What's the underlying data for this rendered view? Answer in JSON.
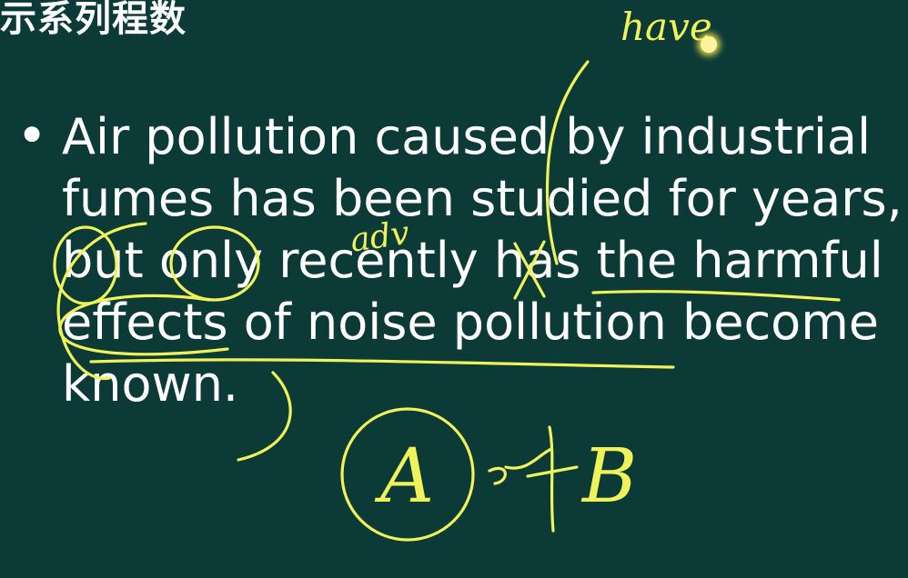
{
  "header": {
    "fragment": "示系列程数"
  },
  "bullet": {
    "symbol": "•",
    "lines": [
      "Air pollution caused by industrial",
      "fumes has been studied for years,",
      "but only recently has the harmful",
      "effects of noise pollution become",
      "known."
    ]
  },
  "annotations": {
    "word_top": "have",
    "word_mid": "adv",
    "letter_a": "A",
    "letter_b": "B",
    "ink_color": "#f0f25a"
  }
}
